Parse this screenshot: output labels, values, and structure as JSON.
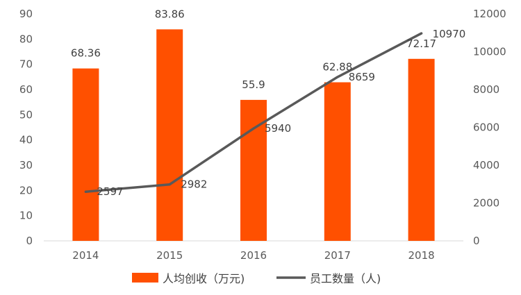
{
  "chart_data": {
    "type": "bar",
    "categories": [
      "2014",
      "2015",
      "2016",
      "2017",
      "2018"
    ],
    "series": [
      {
        "name": "人均创收（万元)",
        "type": "bar",
        "axis": "left",
        "color": "#FF5000",
        "values": [
          68.36,
          83.86,
          55.9,
          62.88,
          72.17
        ],
        "labels": [
          "68.36",
          "83.86",
          "55.9",
          "62.88",
          "72.17"
        ]
      },
      {
        "name": "员工数量（人)",
        "type": "line",
        "axis": "right",
        "color": "#595959",
        "values": [
          2597,
          2982,
          5940,
          8659,
          10970
        ],
        "labels": [
          "2597",
          "2982",
          "5940",
          "8659",
          "10970"
        ]
      }
    ],
    "left_axis": {
      "ylim": [
        0,
        90
      ],
      "ticks": [
        0,
        10,
        20,
        30,
        40,
        50,
        60,
        70,
        80,
        90
      ]
    },
    "right_axis": {
      "ylim": [
        0,
        12000
      ],
      "ticks": [
        0,
        2000,
        4000,
        6000,
        8000,
        10000,
        12000
      ]
    },
    "grid": false,
    "legend_position": "bottom"
  }
}
